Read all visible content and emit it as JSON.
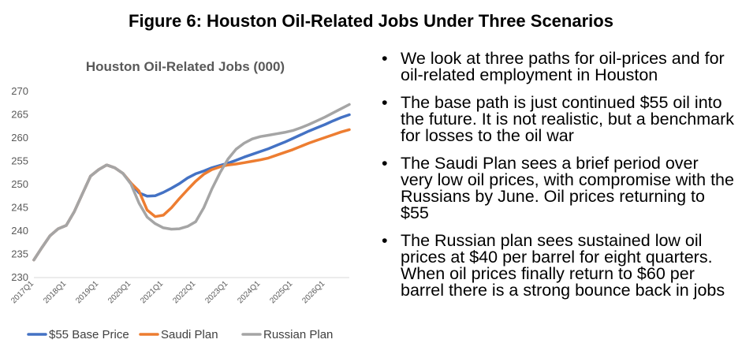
{
  "figure_title": "Figure 6: Houston Oil-Related Jobs Under Three Scenarios",
  "bullets": [
    "We look at three paths for oil-prices and for oil-related employment in Houston",
    "The base path is just continued $55 oil into the future. It is not realistic, but a benchmark for losses to the oil war",
    "The Saudi Plan sees a brief period over very low oil prices, with compromise with the Russians by June. Oil prices returning to $55",
    "The Russian plan sees sustained low oil prices at $40 per barrel for eight quarters. When oil prices finally return to $60 per barrel there is a strong bounce back in jobs"
  ],
  "chart_data": {
    "type": "line",
    "title": "Houston Oil-Related Jobs (000)",
    "ylim": [
      230,
      270
    ],
    "yticks": [
      230,
      235,
      240,
      245,
      250,
      255,
      260,
      265,
      270
    ],
    "x": [
      "2017Q1",
      "2017Q2",
      "2017Q3",
      "2017Q4",
      "2018Q1",
      "2018Q2",
      "2018Q3",
      "2018Q4",
      "2019Q1",
      "2019Q2",
      "2019Q3",
      "2019Q4",
      "2020Q1",
      "2020Q2",
      "2020Q3",
      "2020Q4",
      "2021Q1",
      "2021Q2",
      "2021Q3",
      "2021Q4",
      "2022Q1",
      "2022Q2",
      "2022Q3",
      "2022Q4",
      "2023Q1",
      "2023Q2",
      "2023Q3",
      "2023Q4",
      "2024Q1",
      "2024Q2",
      "2024Q3",
      "2024Q4",
      "2025Q1",
      "2025Q2",
      "2025Q3",
      "2025Q4",
      "2026Q1",
      "2026Q2",
      "2026Q3",
      "2026Q4"
    ],
    "xtick_labels": [
      "2017Q1",
      "2018Q1",
      "2019Q1",
      "2020Q1",
      "2021Q1",
      "2022Q1",
      "2023Q1",
      "2024Q1",
      "2025Q1",
      "2026Q1"
    ],
    "legend_position": "bottom",
    "grid": false,
    "series": [
      {
        "name": "$55 Base Price",
        "color": "#4472C4",
        "values": [
          233.8,
          236.5,
          239.0,
          240.5,
          241.2,
          244.2,
          248.0,
          251.8,
          253.2,
          254.2,
          253.6,
          252.4,
          250.3,
          248.2,
          247.5,
          247.6,
          248.3,
          249.2,
          250.2,
          251.4,
          252.3,
          252.9,
          253.6,
          254.1,
          254.6,
          255.2,
          255.9,
          256.5,
          257.1,
          257.7,
          258.4,
          259.1,
          259.9,
          260.7,
          261.5,
          262.2,
          262.9,
          263.7,
          264.4,
          265.0
        ]
      },
      {
        "name": "Saudi Plan",
        "color": "#ED7D31",
        "values": [
          233.8,
          236.5,
          239.0,
          240.5,
          241.2,
          244.2,
          248.0,
          251.8,
          253.2,
          254.2,
          253.6,
          252.4,
          250.3,
          248.6,
          244.5,
          243.1,
          243.4,
          245.0,
          247.0,
          248.9,
          250.7,
          252.2,
          253.2,
          253.8,
          254.2,
          254.4,
          254.7,
          255.0,
          255.3,
          255.7,
          256.3,
          256.9,
          257.5,
          258.2,
          258.9,
          259.5,
          260.1,
          260.7,
          261.3,
          261.8
        ]
      },
      {
        "name": "Russian Plan",
        "color": "#A5A5A5",
        "values": [
          233.8,
          236.5,
          239.0,
          240.5,
          241.2,
          244.2,
          248.0,
          251.8,
          253.2,
          254.2,
          253.6,
          252.4,
          250.1,
          246.0,
          243.0,
          241.6,
          240.7,
          240.4,
          240.5,
          241.0,
          242.0,
          245.0,
          249.0,
          252.5,
          255.5,
          257.6,
          258.9,
          259.8,
          260.3,
          260.6,
          260.9,
          261.2,
          261.6,
          262.2,
          262.9,
          263.7,
          264.5,
          265.4,
          266.3,
          267.2
        ]
      }
    ]
  }
}
